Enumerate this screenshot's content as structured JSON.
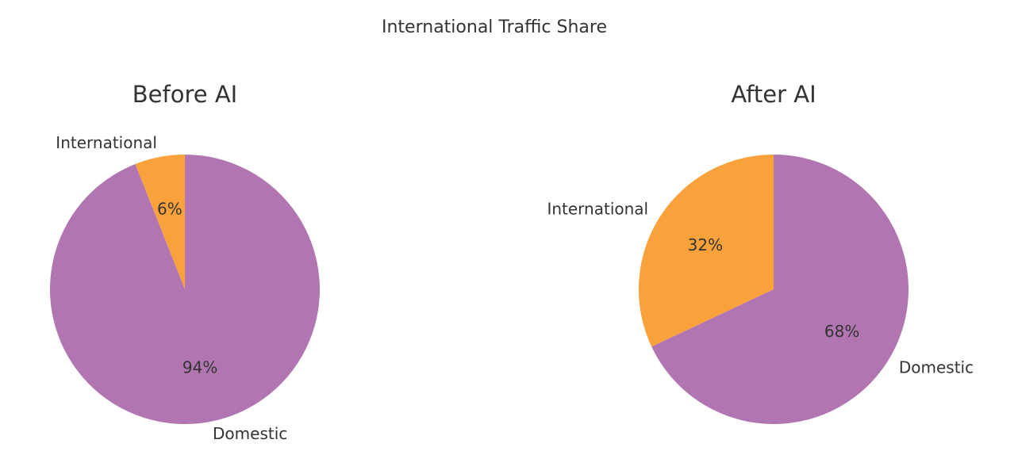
{
  "title": "International Traffic Share",
  "chart_data": [
    {
      "type": "pie",
      "title": "Before AI",
      "categories": [
        "International",
        "Domestic"
      ],
      "values": [
        6,
        94
      ],
      "value_labels": [
        "6%",
        "94%"
      ],
      "colors": [
        "#f9a23c",
        "#b176b1"
      ]
    },
    {
      "type": "pie",
      "title": "After AI",
      "categories": [
        "International",
        "Domestic"
      ],
      "values": [
        32,
        68
      ],
      "value_labels": [
        "32%",
        "68%"
      ],
      "colors": [
        "#f9a23c",
        "#b176b1"
      ]
    }
  ]
}
